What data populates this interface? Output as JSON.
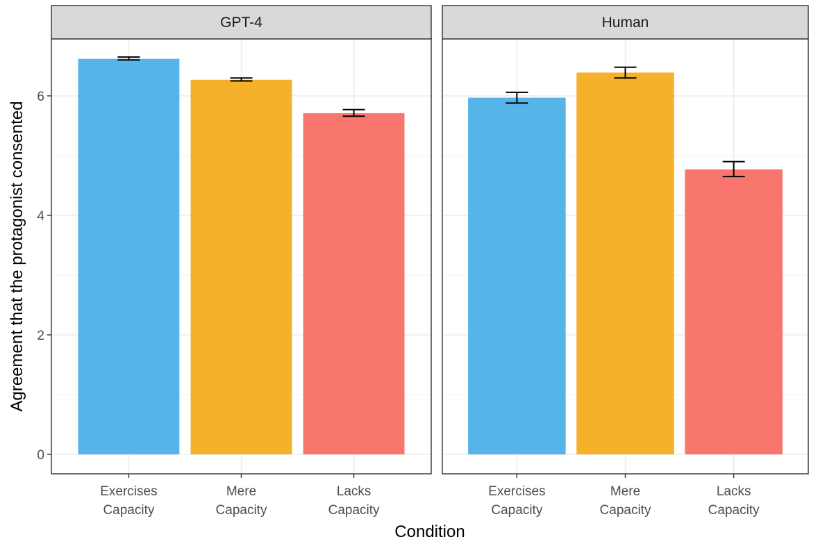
{
  "chart_data": {
    "type": "bar",
    "xlabel": "Condition",
    "ylabel": "Agreement that the protagonist consented",
    "ylim": [
      0,
      7
    ],
    "y_ticks": [
      0,
      2,
      4,
      6
    ],
    "categories": [
      {
        "line1": "Exercises",
        "line2": "Capacity"
      },
      {
        "line1": "Mere",
        "line2": "Capacity"
      },
      {
        "line1": "Lacks",
        "line2": "Capacity"
      }
    ],
    "colors": [
      "#56B4E9",
      "#F6B12A",
      "#F8766D"
    ],
    "grid": true,
    "legend": "none",
    "panels": [
      {
        "name": "GPT-4",
        "values": [
          6.62,
          6.27,
          5.71
        ],
        "error_low": [
          6.6,
          6.25,
          5.66
        ],
        "error_high": [
          6.65,
          6.3,
          5.77
        ]
      },
      {
        "name": "Human",
        "values": [
          5.97,
          6.39,
          4.77
        ],
        "error_low": [
          5.88,
          6.3,
          4.65
        ],
        "error_high": [
          6.06,
          6.48,
          4.9
        ]
      }
    ]
  }
}
